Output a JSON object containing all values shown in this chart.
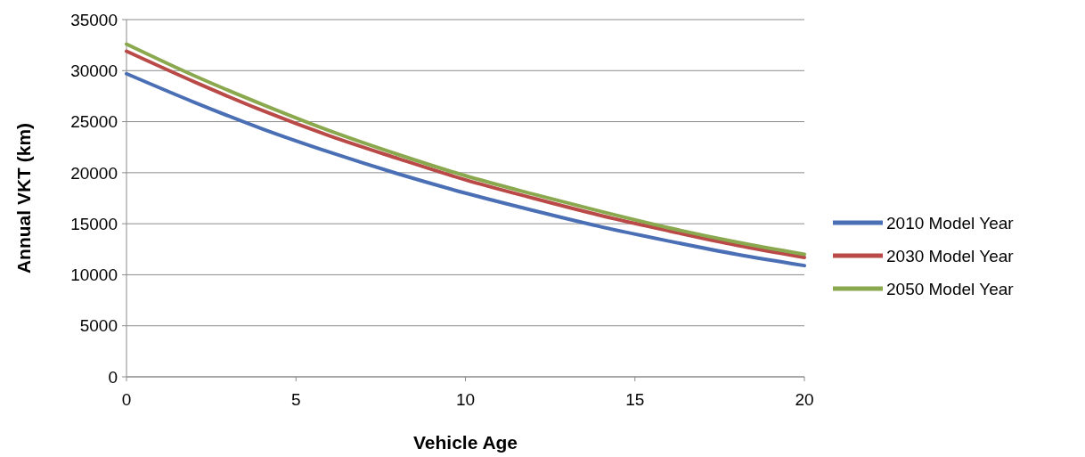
{
  "chart_data": {
    "type": "line",
    "xlabel": "Vehicle Age",
    "ylabel": "Annual VKT (km)",
    "x": [
      0,
      2,
      4,
      6,
      8,
      10,
      12,
      14,
      16,
      18,
      20
    ],
    "series": [
      {
        "name": "2010 Model Year",
        "color": "#4a6fb5",
        "values": [
          29700,
          26900,
          24300,
          22000,
          19900,
          18000,
          16300,
          14700,
          13300,
          12000,
          10900
        ]
      },
      {
        "name": "2030 Model Year",
        "color": "#b94a48",
        "values": [
          31900,
          28900,
          26100,
          23600,
          21400,
          19300,
          17500,
          15800,
          14300,
          12900,
          11700
        ]
      },
      {
        "name": "2050 Model Year",
        "color": "#8aa84e",
        "values": [
          32600,
          29500,
          26700,
          24100,
          21800,
          19700,
          17900,
          16200,
          14600,
          13200,
          12000
        ]
      }
    ],
    "xlim": [
      0,
      20
    ],
    "xticks": [
      0,
      5,
      10,
      15,
      20
    ],
    "ylim": [
      0,
      35000
    ],
    "yticks": [
      0,
      5000,
      10000,
      15000,
      20000,
      25000,
      30000,
      35000
    ],
    "grid": "y",
    "legend": "right",
    "line_style": "solid"
  }
}
